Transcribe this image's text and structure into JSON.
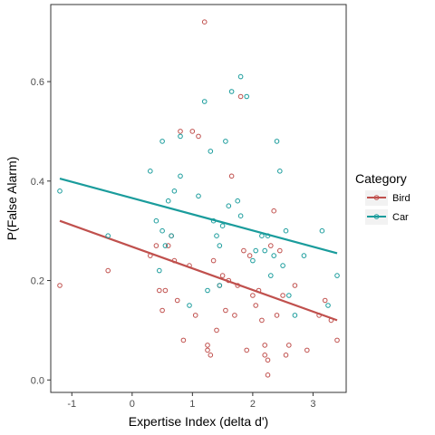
{
  "chart_data": {
    "type": "scatter",
    "xlabel": "Expertise Index (delta d')",
    "ylabel": "P(False Alarm)",
    "xlim": [
      -1.35,
      3.55
    ],
    "ylim": [
      -0.025,
      0.755
    ],
    "x_ticks": [
      -1,
      0,
      1,
      2,
      3
    ],
    "x_tick_labels": [
      "-1",
      "0",
      "1",
      "2",
      "3"
    ],
    "y_ticks": [
      0.0,
      0.2,
      0.4,
      0.6
    ],
    "y_tick_labels": [
      "0.0",
      "0.2",
      "0.4",
      "0.6"
    ],
    "grid": false,
    "legend": {
      "title": "Category",
      "position": "right",
      "entries": [
        "Bird",
        "Car"
      ]
    },
    "series": [
      {
        "name": "Bird",
        "color": "#c0504d",
        "fit_line": {
          "x": [
            -1.2,
            3.4
          ],
          "y": [
            0.32,
            0.12
          ]
        },
        "points": [
          [
            -1.2,
            0.19
          ],
          [
            -0.4,
            0.22
          ],
          [
            0.3,
            0.25
          ],
          [
            0.4,
            0.27
          ],
          [
            0.45,
            0.18
          ],
          [
            0.5,
            0.14
          ],
          [
            0.55,
            0.18
          ],
          [
            0.6,
            0.27
          ],
          [
            0.65,
            0.29
          ],
          [
            0.7,
            0.24
          ],
          [
            0.75,
            0.16
          ],
          [
            0.8,
            0.5
          ],
          [
            0.85,
            0.08
          ],
          [
            0.95,
            0.23
          ],
          [
            1.0,
            0.5
          ],
          [
            1.05,
            0.13
          ],
          [
            1.1,
            0.49
          ],
          [
            1.2,
            0.72
          ],
          [
            1.25,
            0.06
          ],
          [
            1.25,
            0.07
          ],
          [
            1.3,
            0.05
          ],
          [
            1.35,
            0.24
          ],
          [
            1.4,
            0.1
          ],
          [
            1.45,
            0.19
          ],
          [
            1.5,
            0.21
          ],
          [
            1.55,
            0.14
          ],
          [
            1.6,
            0.2
          ],
          [
            1.65,
            0.41
          ],
          [
            1.7,
            0.13
          ],
          [
            1.75,
            0.19
          ],
          [
            1.8,
            0.57
          ],
          [
            1.85,
            0.26
          ],
          [
            1.9,
            0.06
          ],
          [
            1.95,
            0.25
          ],
          [
            2.0,
            0.17
          ],
          [
            2.05,
            0.15
          ],
          [
            2.1,
            0.18
          ],
          [
            2.15,
            0.12
          ],
          [
            2.2,
            0.07
          ],
          [
            2.2,
            0.05
          ],
          [
            2.25,
            0.04
          ],
          [
            2.25,
            0.01
          ],
          [
            2.3,
            0.27
          ],
          [
            2.35,
            0.34
          ],
          [
            2.4,
            0.13
          ],
          [
            2.45,
            0.26
          ],
          [
            2.5,
            0.17
          ],
          [
            2.55,
            0.05
          ],
          [
            2.6,
            0.07
          ],
          [
            2.7,
            0.19
          ],
          [
            2.9,
            0.06
          ],
          [
            3.1,
            0.13
          ],
          [
            3.2,
            0.16
          ],
          [
            3.3,
            0.12
          ],
          [
            3.4,
            0.08
          ]
        ]
      },
      {
        "name": "Car",
        "color": "#1a9c9c",
        "fit_line": {
          "x": [
            -1.2,
            3.4
          ],
          "y": [
            0.405,
            0.255
          ]
        },
        "points": [
          [
            -1.2,
            0.38
          ],
          [
            -0.4,
            0.29
          ],
          [
            0.3,
            0.42
          ],
          [
            0.4,
            0.32
          ],
          [
            0.45,
            0.22
          ],
          [
            0.5,
            0.48
          ],
          [
            0.5,
            0.3
          ],
          [
            0.55,
            0.27
          ],
          [
            0.6,
            0.36
          ],
          [
            0.65,
            0.29
          ],
          [
            0.7,
            0.38
          ],
          [
            0.8,
            0.41
          ],
          [
            0.8,
            0.49
          ],
          [
            0.95,
            0.15
          ],
          [
            1.1,
            0.37
          ],
          [
            1.2,
            0.56
          ],
          [
            1.25,
            0.18
          ],
          [
            1.3,
            0.46
          ],
          [
            1.35,
            0.32
          ],
          [
            1.4,
            0.29
          ],
          [
            1.45,
            0.27
          ],
          [
            1.45,
            0.19
          ],
          [
            1.5,
            0.31
          ],
          [
            1.55,
            0.48
          ],
          [
            1.6,
            0.35
          ],
          [
            1.65,
            0.58
          ],
          [
            1.75,
            0.36
          ],
          [
            1.8,
            0.61
          ],
          [
            1.8,
            0.33
          ],
          [
            1.9,
            0.57
          ],
          [
            2.0,
            0.24
          ],
          [
            2.05,
            0.26
          ],
          [
            2.15,
            0.29
          ],
          [
            2.2,
            0.26
          ],
          [
            2.25,
            0.29
          ],
          [
            2.3,
            0.21
          ],
          [
            2.35,
            0.25
          ],
          [
            2.4,
            0.48
          ],
          [
            2.45,
            0.42
          ],
          [
            2.5,
            0.23
          ],
          [
            2.55,
            0.3
          ],
          [
            2.6,
            0.17
          ],
          [
            2.7,
            0.13
          ],
          [
            2.85,
            0.25
          ],
          [
            3.15,
            0.3
          ],
          [
            3.25,
            0.15
          ],
          [
            3.4,
            0.21
          ]
        ]
      }
    ]
  }
}
